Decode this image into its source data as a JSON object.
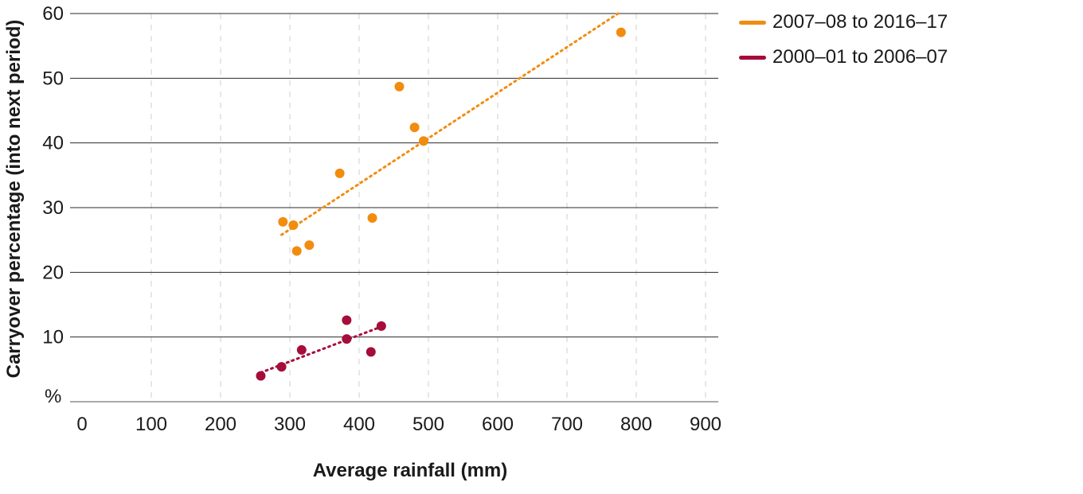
{
  "chart_data": {
    "type": "scatter",
    "xlabel": "Average rainfall (mm)",
    "ylabel": "Carryover percentage (into next period)",
    "y_unit_label": "%",
    "xlim": [
      0,
      900
    ],
    "ylim": [
      0,
      60
    ],
    "x_ticks": [
      "0",
      "100",
      "200",
      "300",
      "400",
      "500",
      "600",
      "700",
      "800",
      "900"
    ],
    "y_ticks": [
      "10",
      "20",
      "30",
      "40",
      "50",
      "60"
    ],
    "grid": {
      "horizontal": true,
      "vertical": true,
      "vertical_style": "dashed"
    },
    "legend_position": "top-right",
    "series": [
      {
        "name": "2007–08 to 2016–17",
        "color": "#f28c0f",
        "points": [
          {
            "x": 290,
            "y": 27.8
          },
          {
            "x": 305,
            "y": 27.3
          },
          {
            "x": 310,
            "y": 23.3
          },
          {
            "x": 328,
            "y": 24.2
          },
          {
            "x": 372,
            "y": 35.3
          },
          {
            "x": 419,
            "y": 28.4
          },
          {
            "x": 458,
            "y": 48.7
          },
          {
            "x": 480,
            "y": 42.4
          },
          {
            "x": 493,
            "y": 40.3
          },
          {
            "x": 778,
            "y": 57.1
          }
        ],
        "trendline": [
          {
            "x": 288,
            "y": 25.8
          },
          {
            "x": 778,
            "y": 60.3
          }
        ]
      },
      {
        "name": "2000–01 to 2006–07",
        "color": "#a50d3a",
        "points": [
          {
            "x": 258,
            "y": 4.0
          },
          {
            "x": 288,
            "y": 5.4
          },
          {
            "x": 317,
            "y": 8.0
          },
          {
            "x": 382,
            "y": 12.6
          },
          {
            "x": 382,
            "y": 9.7
          },
          {
            "x": 417,
            "y": 7.7
          },
          {
            "x": 432,
            "y": 11.7
          }
        ],
        "trendline": [
          {
            "x": 258,
            "y": 4.5
          },
          {
            "x": 432,
            "y": 11.6
          }
        ]
      }
    ]
  }
}
